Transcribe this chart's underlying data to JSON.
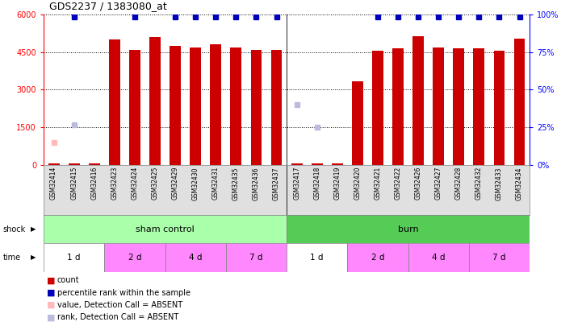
{
  "title": "GDS2237 / 1383080_at",
  "samples": [
    "GSM32414",
    "GSM32415",
    "GSM32416",
    "GSM32423",
    "GSM32424",
    "GSM32425",
    "GSM32429",
    "GSM32430",
    "GSM32431",
    "GSM32435",
    "GSM32436",
    "GSM32437",
    "GSM32417",
    "GSM32418",
    "GSM32419",
    "GSM32420",
    "GSM32421",
    "GSM32422",
    "GSM32426",
    "GSM32427",
    "GSM32428",
    "GSM32432",
    "GSM32433",
    "GSM32434"
  ],
  "counts": [
    60,
    50,
    40,
    5000,
    4600,
    5100,
    4750,
    4700,
    4800,
    4700,
    4600,
    4600,
    55,
    50,
    45,
    3350,
    4550,
    4650,
    5150,
    4700,
    4650,
    4650,
    4550,
    5050
  ],
  "percentile_ranks_y": [
    null,
    5900,
    null,
    null,
    5900,
    null,
    5900,
    5900,
    5900,
    5900,
    5900,
    5900,
    null,
    null,
    null,
    null,
    5900,
    5900,
    5900,
    5900,
    5900,
    5900,
    5900,
    5900
  ],
  "absent_value_y": [
    900,
    null,
    null,
    null,
    null,
    null,
    null,
    null,
    null,
    null,
    null,
    null,
    null,
    null,
    null,
    null,
    null,
    null,
    null,
    null,
    null,
    null,
    null,
    null
  ],
  "absent_rank_y": [
    null,
    1600,
    null,
    null,
    null,
    null,
    null,
    null,
    null,
    null,
    null,
    null,
    2400,
    1500,
    null,
    null,
    null,
    null,
    null,
    null,
    null,
    null,
    null,
    null
  ],
  "bar_color": "#cc0000",
  "percentile_color": "#0000bb",
  "absent_val_color": "#ffbbbb",
  "absent_rank_color": "#bbbbdd",
  "ylim_left": [
    0,
    6000
  ],
  "ylim_right": [
    0,
    100
  ],
  "yticks_left": [
    0,
    1500,
    3000,
    4500,
    6000
  ],
  "yticks_right": [
    0,
    25,
    50,
    75,
    100
  ],
  "sham_color": "#aaffaa",
  "burn_color": "#55cc55",
  "time_group_data": [
    {
      "label": "1 d",
      "start": 0,
      "end": 3,
      "color": "#ffffff"
    },
    {
      "label": "2 d",
      "start": 3,
      "end": 6,
      "color": "#ff88ff"
    },
    {
      "label": "4 d",
      "start": 6,
      "end": 9,
      "color": "#ff88ff"
    },
    {
      "label": "7 d",
      "start": 9,
      "end": 12,
      "color": "#ff88ff"
    },
    {
      "label": "1 d",
      "start": 12,
      "end": 15,
      "color": "#ffffff"
    },
    {
      "label": "2 d",
      "start": 15,
      "end": 18,
      "color": "#ff88ff"
    },
    {
      "label": "4 d",
      "start": 18,
      "end": 21,
      "color": "#ff88ff"
    },
    {
      "label": "7 d",
      "start": 21,
      "end": 24,
      "color": "#ff88ff"
    }
  ],
  "legend_items": [
    {
      "label": "count",
      "color": "#cc0000"
    },
    {
      "label": "percentile rank within the sample",
      "color": "#0000bb"
    },
    {
      "label": "value, Detection Call = ABSENT",
      "color": "#ffbbbb"
    },
    {
      "label": "rank, Detection Call = ABSENT",
      "color": "#bbbbdd"
    }
  ]
}
